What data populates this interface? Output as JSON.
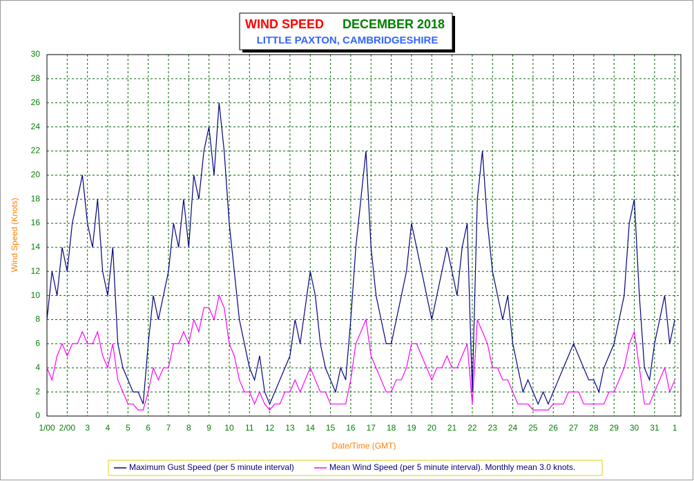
{
  "chart_data": {
    "type": "line",
    "title": "WIND SPEED",
    "title_month": "DECEMBER 2018",
    "subtitle": "LITTLE PAXTON, CAMBRIDGESHIRE",
    "xlabel": "Date/Time (GMT)",
    "ylabel": "Wind Speed (Knots)",
    "xlim": [
      0,
      31.3
    ],
    "ylim": [
      0,
      30
    ],
    "yticks": [
      0,
      2,
      4,
      6,
      8,
      10,
      12,
      14,
      16,
      18,
      20,
      22,
      24,
      26,
      28,
      30
    ],
    "xticks": [
      {
        "value": 0,
        "label": "1/00"
      },
      {
        "value": 1,
        "label": "2/00"
      },
      {
        "value": 2,
        "label": "3"
      },
      {
        "value": 3,
        "label": "4"
      },
      {
        "value": 4,
        "label": "5"
      },
      {
        "value": 5,
        "label": "6"
      },
      {
        "value": 6,
        "label": "7"
      },
      {
        "value": 7,
        "label": "8"
      },
      {
        "value": 8,
        "label": "9"
      },
      {
        "value": 9,
        "label": "10"
      },
      {
        "value": 10,
        "label": "11"
      },
      {
        "value": 11,
        "label": "12"
      },
      {
        "value": 12,
        "label": "13"
      },
      {
        "value": 13,
        "label": "14"
      },
      {
        "value": 14,
        "label": "15"
      },
      {
        "value": 15,
        "label": "16"
      },
      {
        "value": 16,
        "label": "17"
      },
      {
        "value": 17,
        "label": "18"
      },
      {
        "value": 18,
        "label": "19"
      },
      {
        "value": 19,
        "label": "20"
      },
      {
        "value": 20,
        "label": "21"
      },
      {
        "value": 21,
        "label": "22"
      },
      {
        "value": 22,
        "label": "23"
      },
      {
        "value": 23,
        "label": "24"
      },
      {
        "value": 24,
        "label": "25"
      },
      {
        "value": 25,
        "label": "26"
      },
      {
        "value": 26,
        "label": "27"
      },
      {
        "value": 27,
        "label": "28"
      },
      {
        "value": 28,
        "label": "29"
      },
      {
        "value": 29,
        "label": "30"
      },
      {
        "value": 30,
        "label": "31"
      },
      {
        "value": 31,
        "label": "1"
      }
    ],
    "grid": true,
    "x": [
      0,
      0.25,
      0.5,
      0.75,
      1,
      1.25,
      1.5,
      1.75,
      2,
      2.25,
      2.5,
      2.75,
      3,
      3.25,
      3.5,
      3.75,
      4,
      4.25,
      4.5,
      4.75,
      5,
      5.25,
      5.5,
      5.75,
      6,
      6.25,
      6.5,
      6.75,
      7,
      7.25,
      7.5,
      7.75,
      8,
      8.25,
      8.5,
      8.75,
      9,
      9.25,
      9.5,
      9.75,
      10,
      10.25,
      10.5,
      10.75,
      11,
      11.25,
      11.5,
      11.75,
      12,
      12.25,
      12.5,
      12.75,
      13,
      13.25,
      13.5,
      13.75,
      14,
      14.25,
      14.5,
      14.75,
      15,
      15.25,
      15.5,
      15.75,
      16,
      16.25,
      16.5,
      16.75,
      17,
      17.25,
      17.5,
      17.75,
      18,
      18.25,
      18.5,
      18.75,
      19,
      19.25,
      19.5,
      19.75,
      20,
      20.25,
      20.5,
      20.75,
      21,
      21.25,
      21.5,
      21.75,
      22,
      22.25,
      22.5,
      22.75,
      23,
      23.25,
      23.5,
      23.75,
      24,
      24.25,
      24.5,
      24.75,
      25,
      25.25,
      25.5,
      25.75,
      26,
      26.25,
      26.5,
      26.75,
      27,
      27.25,
      27.5,
      27.75,
      28,
      28.25,
      28.5,
      28.75,
      29,
      29.25,
      29.5,
      29.75,
      30,
      30.25,
      30.5,
      30.75,
      31
    ],
    "series": [
      {
        "name": "Maximum Gust Speed (per 5 minute interval)",
        "color": "#000080",
        "values": [
          8,
          12,
          10,
          14,
          12,
          16,
          18,
          20,
          16,
          14,
          18,
          12,
          10,
          14,
          6,
          4,
          3,
          2,
          2,
          1,
          6,
          10,
          8,
          10,
          12,
          16,
          14,
          18,
          14,
          20,
          18,
          22,
          24,
          20,
          26,
          22,
          16,
          12,
          8,
          6,
          4,
          3,
          5,
          2,
          1,
          2,
          3,
          4,
          5,
          8,
          6,
          9,
          12,
          10,
          6,
          4,
          3,
          2,
          4,
          3,
          8,
          14,
          18,
          22,
          14,
          10,
          8,
          6,
          6,
          8,
          10,
          12,
          16,
          14,
          12,
          10,
          8,
          10,
          12,
          14,
          12,
          10,
          14,
          16,
          2,
          18,
          22,
          16,
          12,
          10,
          8,
          10,
          6,
          4,
          2,
          3,
          2,
          1,
          2,
          1,
          2,
          3,
          4,
          5,
          6,
          5,
          4,
          3,
          3,
          2,
          4,
          5,
          6,
          8,
          10,
          16,
          18,
          10,
          4,
          3,
          6,
          8,
          10,
          6,
          8
        ]
      },
      {
        "name": "Mean Wind Speed (per 5 minute interval). Monthly mean 3.0 knots.",
        "color": "#ff00ff",
        "values": [
          4,
          3,
          5,
          6,
          5,
          6,
          6,
          7,
          6,
          6,
          7,
          5,
          4,
          6,
          3,
          2,
          1,
          1,
          0.5,
          0.5,
          2,
          4,
          3,
          4,
          4,
          6,
          6,
          7,
          6,
          8,
          7,
          9,
          9,
          8,
          10,
          9,
          6,
          5,
          3,
          2,
          2,
          1,
          2,
          1,
          0.5,
          1,
          1,
          2,
          2,
          3,
          2,
          3,
          4,
          3,
          2,
          2,
          1,
          1,
          1,
          1,
          3,
          6,
          7,
          8,
          5,
          4,
          3,
          2,
          2,
          3,
          3,
          4,
          6,
          6,
          5,
          4,
          3,
          4,
          4,
          5,
          4,
          4,
          5,
          6,
          1,
          8,
          7,
          6,
          4,
          4,
          3,
          3,
          2,
          1,
          1,
          1,
          0.5,
          0.5,
          0.5,
          0.5,
          1,
          1,
          1,
          2,
          2,
          2,
          1,
          1,
          1,
          1,
          1,
          2,
          2,
          3,
          4,
          6,
          7,
          4,
          1,
          1,
          2,
          3,
          4,
          2,
          3
        ]
      }
    ]
  }
}
